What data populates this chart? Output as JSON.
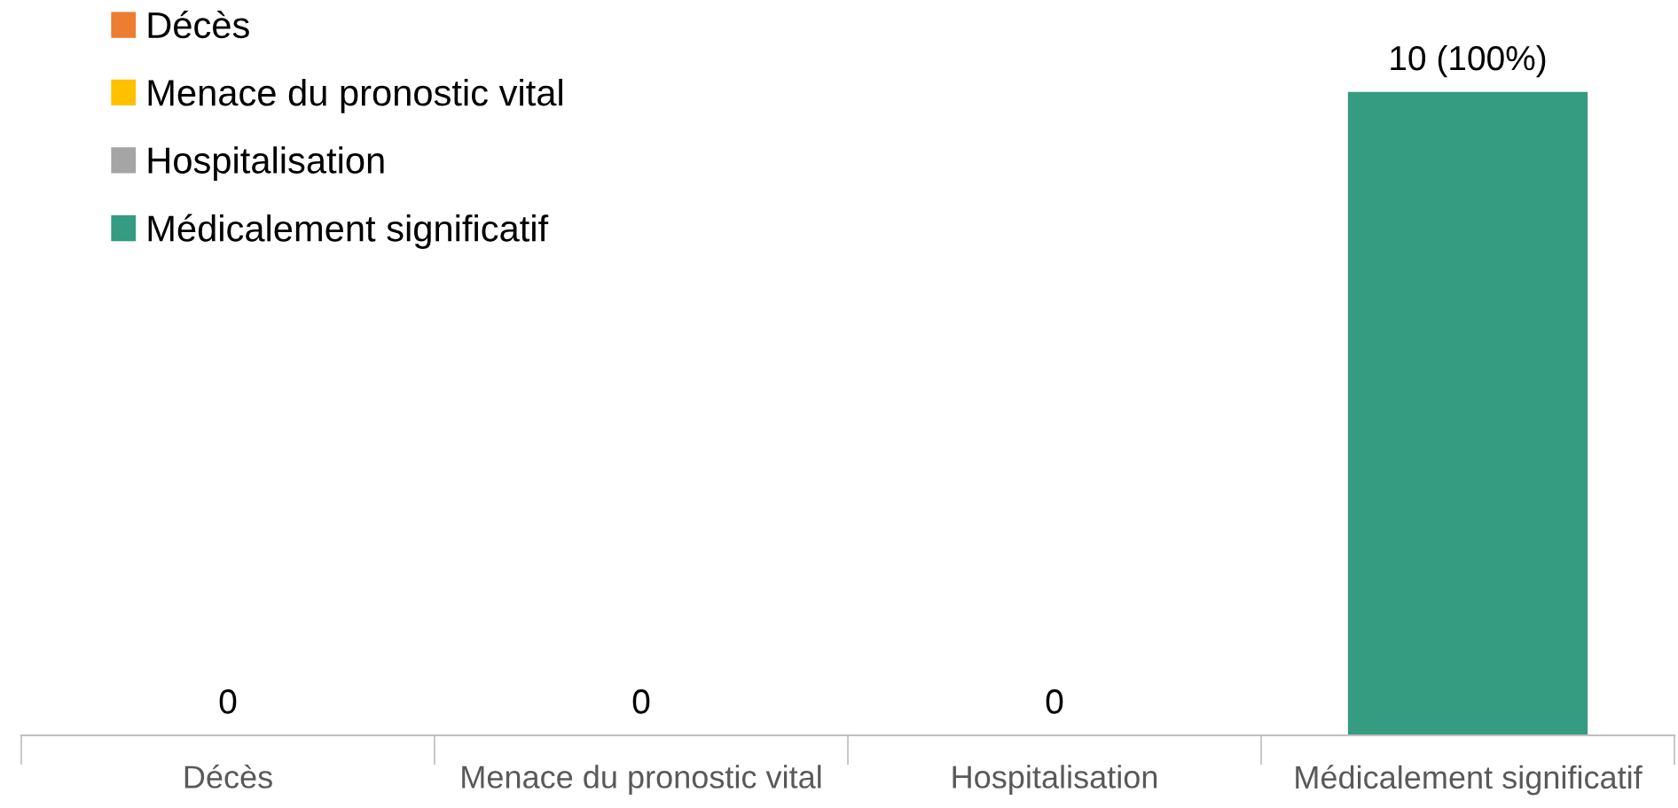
{
  "chart_data": {
    "type": "bar",
    "categories": [
      "Décès",
      "Menace du pronostic vital",
      "Hospitalisation",
      "Médicalement significatif"
    ],
    "series": [
      {
        "name": "Décès",
        "color": "#ed7d31",
        "values": [
          0,
          null,
          null,
          null
        ],
        "value_labels": [
          "0",
          null,
          null,
          null
        ]
      },
      {
        "name": "Menace du pronostic vital",
        "color": "#ffc000",
        "values": [
          null,
          0,
          null,
          null
        ],
        "value_labels": [
          null,
          "0",
          null,
          null
        ]
      },
      {
        "name": "Hospitalisation",
        "color": "#a5a5a5",
        "values": [
          null,
          null,
          0,
          null
        ],
        "value_labels": [
          null,
          null,
          "0",
          null
        ]
      },
      {
        "name": "Médicalement significatif",
        "color": "#359b81",
        "values": [
          null,
          null,
          null,
          10
        ],
        "value_labels": [
          null,
          null,
          null,
          "10 (100%)"
        ]
      }
    ],
    "legend": "top left",
    "grid": false
  }
}
